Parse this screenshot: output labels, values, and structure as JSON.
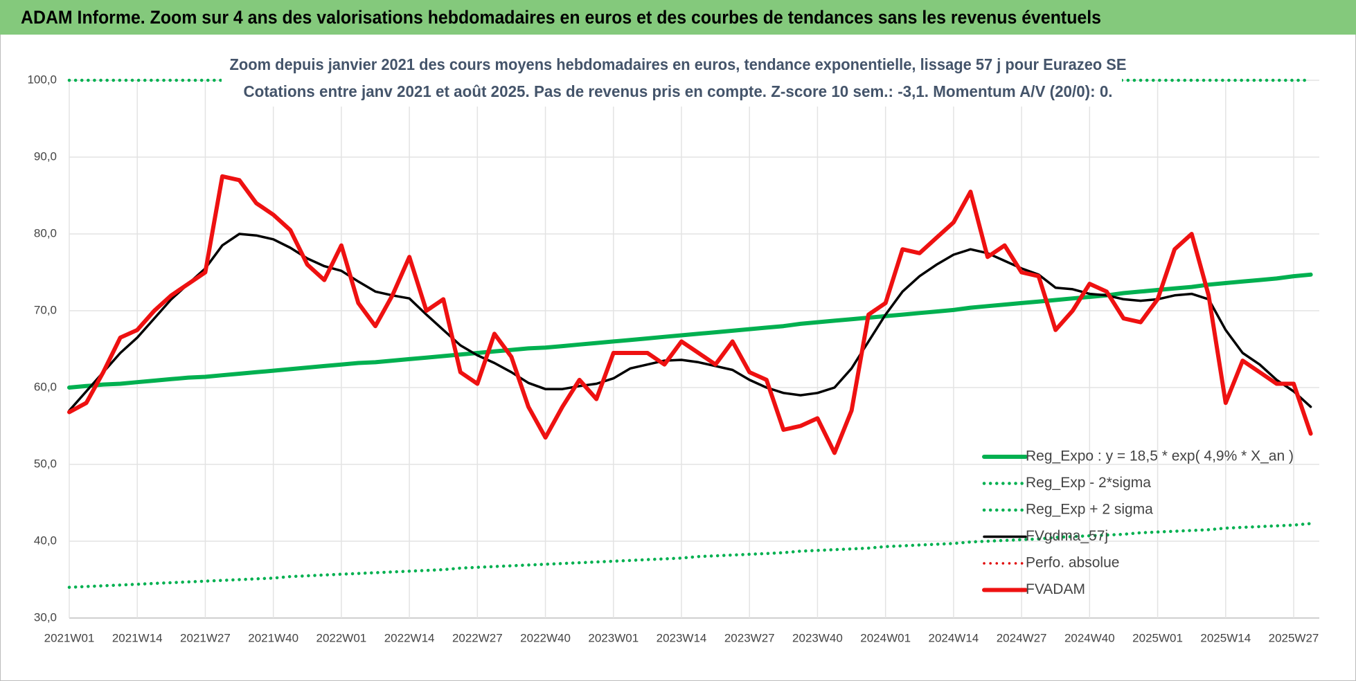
{
  "chart_data": {
    "type": "line",
    "header": "ADAM Informe. Zoom sur 4 ans des valorisations hebdomadaires en euros et des courbes de tendances sans les revenus éventuels",
    "title": "Zoom depuis janvier 2021 des cours moyens hebdomadaires en euros, tendance exponentielle, lissage 57 j pour Eurazeo SE",
    "subtitle": "Cotations entre janv 2021 et août 2025.  Pas de revenus pris en compte. Z-score 10 sem.: -3,1. Momentum A/V (20/0): 0.",
    "categories": [
      "2021W01",
      null,
      null,
      null,
      "2021W14",
      null,
      null,
      null,
      "2021W27",
      null,
      null,
      null,
      "2021W40",
      null,
      null,
      null,
      "2022W01",
      null,
      null,
      null,
      "2022W14",
      null,
      null,
      null,
      "2022W27",
      null,
      null,
      null,
      "2022W40",
      null,
      null,
      null,
      "2023W01",
      null,
      null,
      null,
      "2023W14",
      null,
      null,
      null,
      "2023W27",
      null,
      null,
      null,
      "2023W40",
      null,
      null,
      null,
      "2024W01",
      null,
      null,
      null,
      "2024W14",
      null,
      null,
      null,
      "2024W27",
      null,
      null,
      null,
      "2024W40",
      null,
      null,
      null,
      "2025W01",
      null,
      null,
      null,
      "2025W14",
      null,
      null,
      null,
      "2025W27",
      null
    ],
    "ylim": [
      30,
      100
    ],
    "yticks": [
      {
        "value": 30,
        "label": "30,0"
      },
      {
        "value": 40,
        "label": "40,0"
      },
      {
        "value": 50,
        "label": "50,0"
      },
      {
        "value": 60,
        "label": "60,0"
      },
      {
        "value": 70,
        "label": "70,0"
      },
      {
        "value": 80,
        "label": "80,0"
      },
      {
        "value": 90,
        "label": "90,0"
      },
      {
        "value": 100,
        "label": "100,0"
      }
    ],
    "grid": true,
    "legend": "lower right",
    "series": [
      {
        "name": "Reg_Expo : y = 18,5 * exp( 4,9% *  X_an )",
        "color": "#00b050",
        "line_style": "solid",
        "values": [
          60.0,
          60.2,
          60.4,
          60.5,
          60.7,
          60.9,
          61.1,
          61.3,
          61.4,
          61.6,
          61.8,
          62.0,
          62.2,
          62.4,
          62.6,
          62.8,
          63.0,
          63.2,
          63.3,
          63.5,
          63.7,
          63.9,
          64.1,
          64.3,
          64.5,
          64.7,
          64.9,
          65.1,
          65.2,
          65.4,
          65.6,
          65.8,
          66.0,
          66.2,
          66.4,
          66.6,
          66.8,
          67.0,
          67.2,
          67.4,
          67.6,
          67.8,
          68.0,
          68.3,
          68.5,
          68.7,
          68.9,
          69.1,
          69.3,
          69.5,
          69.7,
          69.9,
          70.1,
          70.4,
          70.6,
          70.8,
          71.0,
          71.2,
          71.4,
          71.6,
          71.8,
          72.0,
          72.3,
          72.5,
          72.7,
          72.9,
          73.1,
          73.4,
          73.6,
          73.8,
          74.0,
          74.2,
          74.5,
          74.7
        ]
      },
      {
        "name": "Reg_Exp - 2*sigma",
        "color": "#00b050",
        "line_style": "dotted",
        "values": [
          34.0,
          34.1,
          34.2,
          34.3,
          34.4,
          34.5,
          34.6,
          34.7,
          34.8,
          34.9,
          35.0,
          35.1,
          35.2,
          35.4,
          35.5,
          35.6,
          35.7,
          35.8,
          35.9,
          36.0,
          36.1,
          36.2,
          36.3,
          36.5,
          36.6,
          36.7,
          36.8,
          36.9,
          37.0,
          37.1,
          37.2,
          37.3,
          37.4,
          37.5,
          37.6,
          37.7,
          37.8,
          38.0,
          38.1,
          38.2,
          38.3,
          38.4,
          38.5,
          38.7,
          38.8,
          38.9,
          39.0,
          39.1,
          39.3,
          39.4,
          39.5,
          39.6,
          39.7,
          39.9,
          40.0,
          40.1,
          40.2,
          40.3,
          40.5,
          40.6,
          40.7,
          40.8,
          40.9,
          41.1,
          41.2,
          41.3,
          41.4,
          41.5,
          41.7,
          41.8,
          41.9,
          42.0,
          42.1,
          42.3
        ]
      },
      {
        "name": "Reg_Exp + 2 sigma",
        "color": "#00b050",
        "line_style": "dotted",
        "values": [
          100,
          100,
          100,
          100,
          100,
          100,
          100,
          100,
          100,
          100,
          100,
          100,
          100,
          100,
          100,
          100,
          100,
          100,
          100,
          100,
          100,
          100,
          100,
          100,
          100,
          100,
          100,
          100,
          100,
          100,
          100,
          100,
          100,
          100,
          100,
          100,
          100,
          100,
          100,
          100,
          100,
          100,
          100,
          100,
          100,
          100,
          100,
          100,
          100,
          100,
          100,
          100,
          100,
          100,
          100,
          100,
          100,
          100,
          100,
          100,
          100,
          100,
          100,
          100,
          100,
          100,
          100,
          100,
          100,
          100,
          100,
          100,
          100,
          100
        ]
      },
      {
        "name": "FVgdma_57j",
        "color": "#000000",
        "line_style": "solid",
        "values": [
          57,
          59.5,
          62,
          64.5,
          66.5,
          69,
          71.5,
          73.5,
          75.5,
          78.5,
          80,
          79.8,
          79.3,
          78.2,
          76.8,
          75.8,
          75.2,
          73.8,
          72.5,
          72,
          71.6,
          69.5,
          67.5,
          65.5,
          64.2,
          63.2,
          62,
          60.6,
          59.8,
          59.8,
          60.2,
          60.5,
          61.2,
          62.5,
          63,
          63.5,
          63.6,
          63.3,
          62.8,
          62.3,
          61,
          60,
          59.3,
          59,
          59.3,
          60,
          62.5,
          66,
          69.5,
          72.5,
          74.5,
          76,
          77.3,
          78,
          77.5,
          76.5,
          75.5,
          74.7,
          73,
          72.8,
          72.2,
          72,
          71.5,
          71.3,
          71.5,
          72,
          72.2,
          71.5,
          67.5,
          64.5,
          63,
          61,
          59.5,
          57.5
        ]
      },
      {
        "name": "Perfo. absolue",
        "color": "#e00000",
        "line_style": "dotted",
        "values": [
          null,
          null,
          null,
          null,
          null,
          null,
          null,
          null,
          null,
          null,
          null,
          null,
          null,
          null,
          null,
          null,
          null,
          null,
          null,
          null,
          null,
          null,
          null,
          null,
          null,
          null,
          null,
          null,
          null,
          null,
          null,
          null,
          null,
          null,
          null,
          null,
          null,
          null,
          null,
          null,
          null,
          null,
          null,
          null,
          null,
          null,
          null,
          null,
          null,
          null,
          null,
          null,
          null,
          null,
          null,
          null,
          null,
          null,
          null,
          null,
          null,
          null,
          null,
          null,
          null,
          null,
          null,
          null,
          null,
          null,
          null,
          null,
          null,
          null
        ]
      },
      {
        "name": "FVADAM",
        "color": "#ee1111",
        "line_style": "solid",
        "values": [
          56.8,
          58,
          62,
          66.5,
          67.5,
          70,
          72,
          73.5,
          75,
          87.5,
          87,
          84,
          82.5,
          80.5,
          76,
          74,
          78.5,
          71,
          68,
          72,
          77,
          70,
          71.5,
          62,
          60.5,
          67,
          64,
          57.5,
          53.5,
          57.5,
          61,
          58.5,
          64.5,
          64.5,
          64.5,
          63,
          66,
          64.5,
          63,
          66,
          62,
          61,
          54.5,
          55,
          56,
          51.5,
          57,
          69.5,
          71,
          78,
          77.5,
          79.5,
          81.5,
          85.5,
          77,
          78.5,
          75,
          74.5,
          67.5,
          70,
          73.5,
          72.5,
          69,
          68.5,
          71.5,
          78,
          80,
          72,
          58,
          63.5,
          62,
          60.5,
          60.5,
          54
        ]
      }
    ]
  }
}
